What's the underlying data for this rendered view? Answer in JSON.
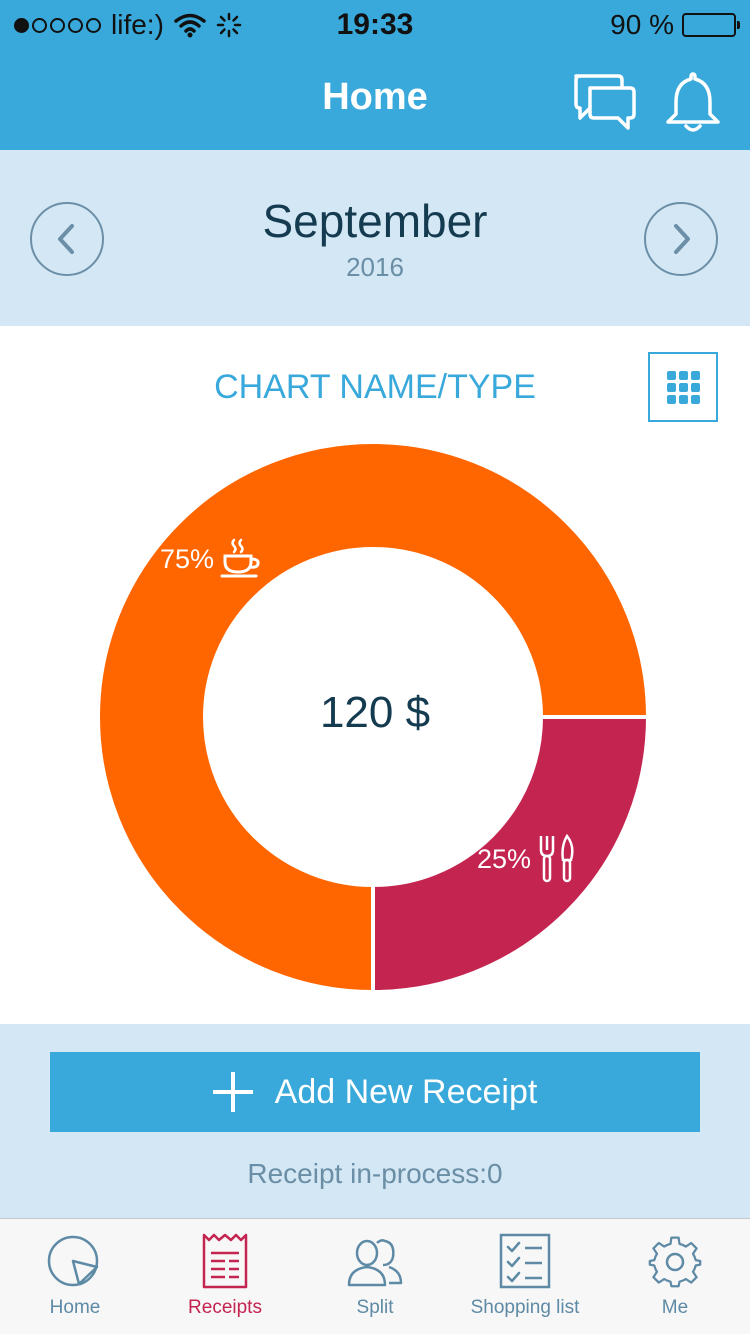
{
  "status_bar": {
    "carrier": "life:)",
    "time": "19:33",
    "battery": "90 %",
    "battery_fraction": 0.9,
    "signal_bars_filled": 1,
    "signal_bars_total": 5
  },
  "header": {
    "title": "Home",
    "icons": [
      "chat-icon",
      "bell-icon"
    ]
  },
  "month_selector": {
    "month": "September",
    "year": "2016",
    "icons": [
      "chevron-left-icon",
      "chevron-right-icon"
    ]
  },
  "chart_card": {
    "title": "CHART NAME/TYPE",
    "grid_button_icon": "grid-icon"
  },
  "chart_data": {
    "type": "pie",
    "title": "CHART NAME/TYPE",
    "total": "120 $",
    "slices": [
      {
        "percent": 75,
        "label": "75%",
        "icon": "coffee-cup-icon",
        "color": "#ff6600"
      },
      {
        "percent": 25,
        "label": "25%",
        "icon": "fork-knife-icon",
        "color": "#c42450"
      }
    ]
  },
  "actions": {
    "add_receipt": "Add New Receipt",
    "receipt_process": "Receipt in-process:0"
  },
  "tabbar": {
    "items": [
      {
        "label": "Home",
        "icon": "pie-chart-icon",
        "active": false
      },
      {
        "label": "Receipts",
        "icon": "receipt-icon",
        "active": true
      },
      {
        "label": "Split",
        "icon": "users-icon",
        "active": false
      },
      {
        "label": "Shopping list",
        "icon": "checklist-icon",
        "active": false
      },
      {
        "label": "Me",
        "icon": "gear-icon",
        "active": false
      }
    ]
  },
  "colors": {
    "primary": "#39a9db",
    "light_band": "#d4e7f4",
    "accent_red": "#c42450",
    "accent_orange": "#ff6600",
    "dark_text": "#153b50"
  }
}
